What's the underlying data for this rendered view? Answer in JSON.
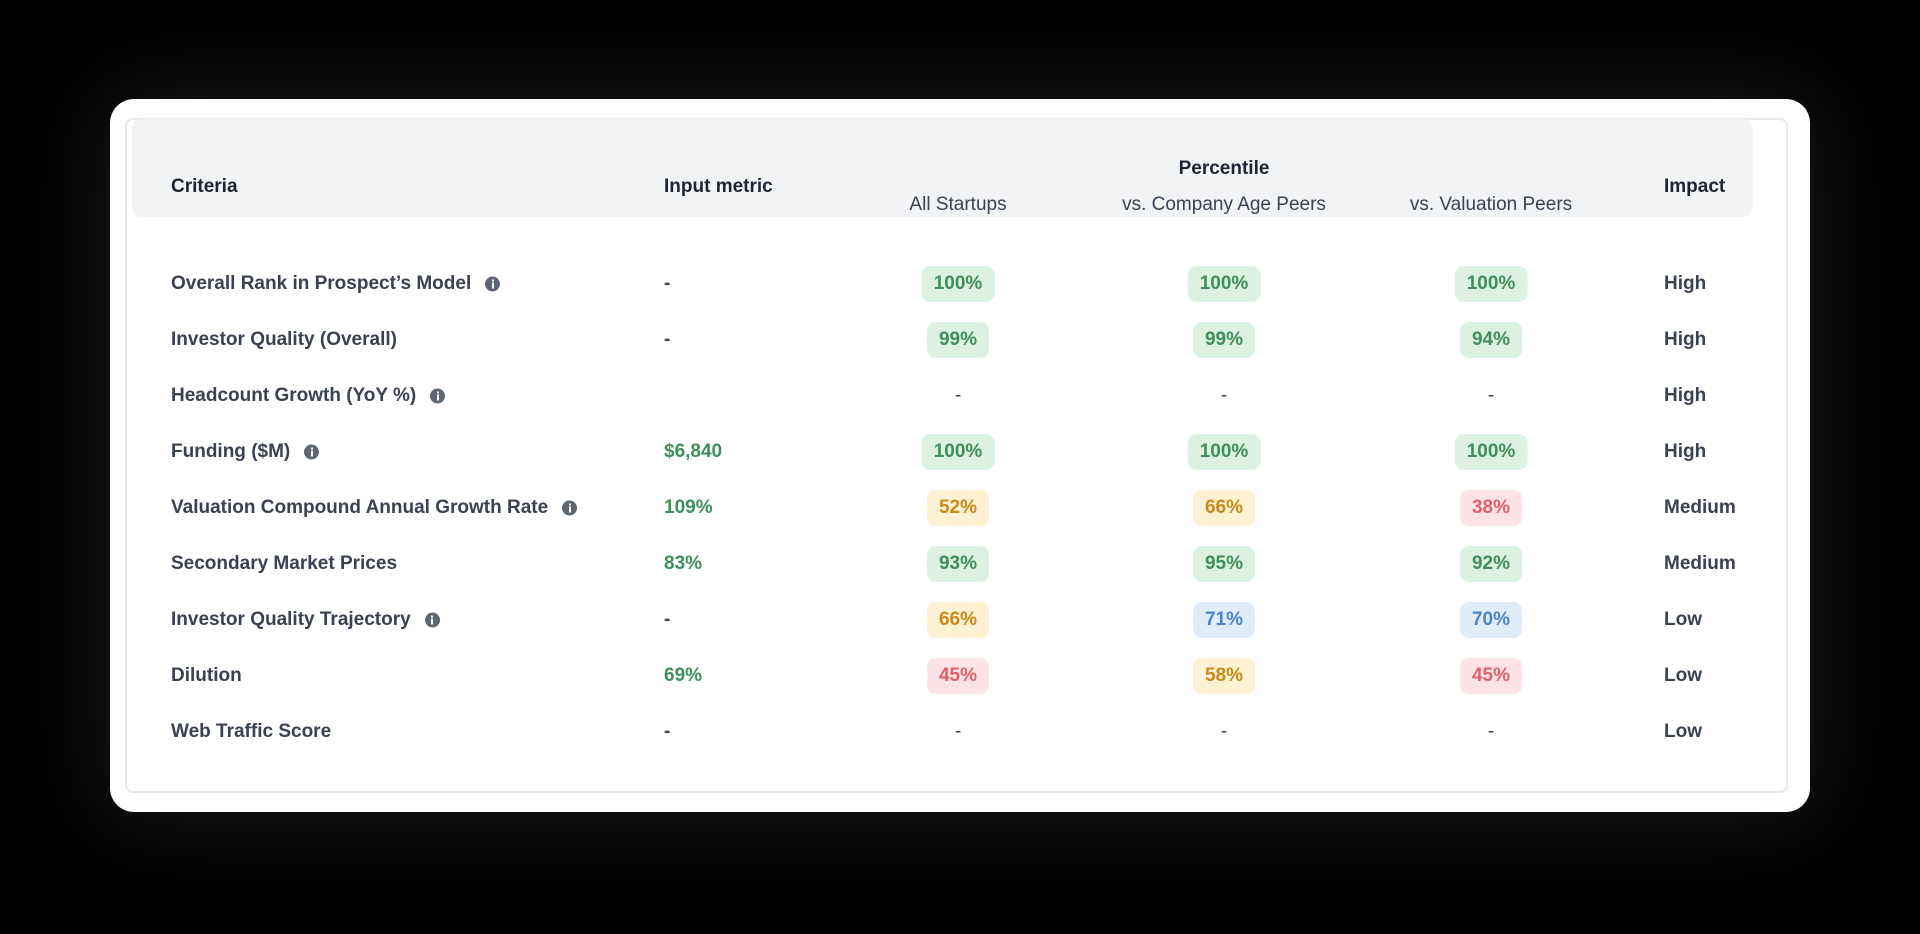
{
  "header": {
    "criteria": "Criteria",
    "input_metric": "Input metric",
    "percentile": "Percentile",
    "groups": [
      "All Startups",
      "vs. Company Age Peers",
      "vs. Valuation Peers"
    ],
    "impact": "Impact"
  },
  "table": {
    "rows": [
      {
        "criteria": "Overall Rank in Prospect’s Model",
        "info": true,
        "input": {
          "text": "-",
          "tone": "plain"
        },
        "percentiles": [
          {
            "text": "100%",
            "tone": "green"
          },
          {
            "text": "100%",
            "tone": "green"
          },
          {
            "text": "100%",
            "tone": "green"
          }
        ],
        "impact": "High"
      },
      {
        "criteria": "Investor Quality (Overall)",
        "info": false,
        "input": {
          "text": "-",
          "tone": "plain"
        },
        "percentiles": [
          {
            "text": "99%",
            "tone": "green"
          },
          {
            "text": "99%",
            "tone": "green"
          },
          {
            "text": "94%",
            "tone": "green"
          }
        ],
        "impact": "High"
      },
      {
        "criteria": "Headcount Growth (YoY %)",
        "info": true,
        "input": null,
        "percentiles": [
          {
            "text": "-",
            "tone": "plain"
          },
          {
            "text": "-",
            "tone": "plain"
          },
          {
            "text": "-",
            "tone": "plain"
          }
        ],
        "impact": "High"
      },
      {
        "criteria": "Funding ($M)",
        "info": true,
        "input": {
          "text": "$6,840",
          "tone": "green"
        },
        "percentiles": [
          {
            "text": "100%",
            "tone": "green"
          },
          {
            "text": "100%",
            "tone": "green"
          },
          {
            "text": "100%",
            "tone": "green"
          }
        ],
        "impact": "High"
      },
      {
        "criteria": "Valuation Compound Annual Growth Rate",
        "info": true,
        "input": {
          "text": "109%",
          "tone": "green"
        },
        "percentiles": [
          {
            "text": "52%",
            "tone": "yellow"
          },
          {
            "text": "66%",
            "tone": "yellow"
          },
          {
            "text": "38%",
            "tone": "red"
          }
        ],
        "impact": "Medium"
      },
      {
        "criteria": "Secondary Market Prices",
        "info": false,
        "input": {
          "text": "83%",
          "tone": "green"
        },
        "percentiles": [
          {
            "text": "93%",
            "tone": "green"
          },
          {
            "text": "95%",
            "tone": "green"
          },
          {
            "text": "92%",
            "tone": "green"
          }
        ],
        "impact": "Medium"
      },
      {
        "criteria": "Investor Quality Trajectory",
        "info": true,
        "input": {
          "text": "-",
          "tone": "plain"
        },
        "percentiles": [
          {
            "text": "66%",
            "tone": "yellow"
          },
          {
            "text": "71%",
            "tone": "blue"
          },
          {
            "text": "70%",
            "tone": "blue"
          }
        ],
        "impact": "Low"
      },
      {
        "criteria": "Dilution",
        "info": false,
        "input": {
          "text": "69%",
          "tone": "green"
        },
        "percentiles": [
          {
            "text": "45%",
            "tone": "red"
          },
          {
            "text": "58%",
            "tone": "yellow"
          },
          {
            "text": "45%",
            "tone": "red"
          }
        ],
        "impact": "Low"
      },
      {
        "criteria": "Web Traffic Score",
        "info": false,
        "input": {
          "text": "-",
          "tone": "plain"
        },
        "percentiles": [
          {
            "text": "-",
            "tone": "plain"
          },
          {
            "text": "-",
            "tone": "plain"
          },
          {
            "text": "-",
            "tone": "plain"
          }
        ],
        "impact": "Low"
      }
    ]
  }
}
